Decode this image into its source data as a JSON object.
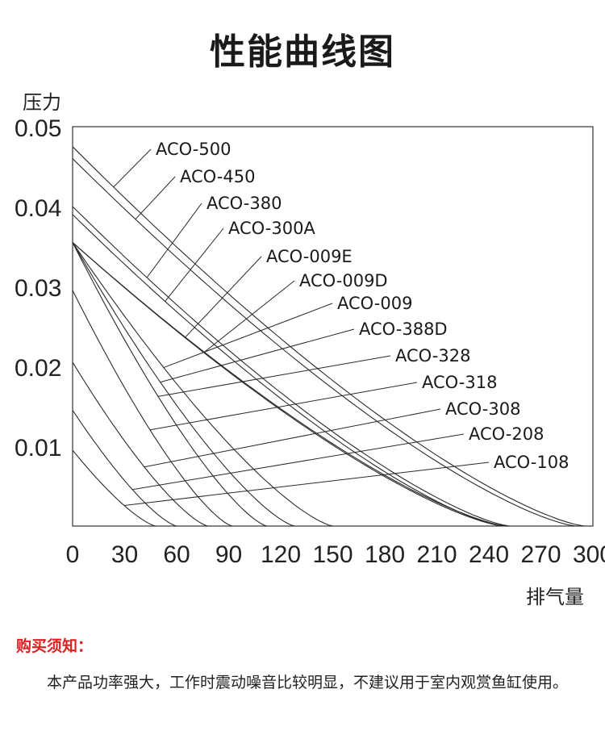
{
  "title": "性能曲线图",
  "chart_data": {
    "type": "line",
    "title": "性能曲线图",
    "ylabel": "压力",
    "xlabel": "排气量",
    "xlim": [
      0,
      300
    ],
    "ylim": [
      0,
      0.05
    ],
    "xticks": [
      0,
      30,
      60,
      90,
      120,
      150,
      180,
      210,
      240,
      270,
      300
    ],
    "yticks": [
      0.01,
      0.02,
      0.03,
      0.04,
      0.05
    ],
    "ytick_labels": [
      "0.01",
      "0.02",
      "0.03",
      "0.04",
      "0.05"
    ],
    "series": [
      {
        "name": "ACO-500",
        "y0": 0.0475,
        "x_max": 295
      },
      {
        "name": "ACO-450",
        "y0": 0.046,
        "x_max": 290
      },
      {
        "name": "ACO-380",
        "y0": 0.04,
        "x_max": 252
      },
      {
        "name": "ACO-300A",
        "y0": 0.039,
        "x_max": 248
      },
      {
        "name": "ACO-009E",
        "y0": 0.0355,
        "x_max": 250
      },
      {
        "name": "ACO-009D",
        "y0": 0.0355,
        "x_max": 248
      },
      {
        "name": "ACO-009",
        "y0": 0.0355,
        "x_max": 150
      },
      {
        "name": "ACO-388D",
        "y0": 0.0355,
        "x_max": 128
      },
      {
        "name": "ACO-328",
        "y0": 0.0355,
        "x_max": 112
      },
      {
        "name": "ACO-318",
        "y0": 0.0295,
        "x_max": 92
      },
      {
        "name": "ACO-308",
        "y0": 0.0205,
        "x_max": 78
      },
      {
        "name": "ACO-208",
        "y0": 0.0145,
        "x_max": 60
      },
      {
        "name": "ACO-108",
        "y0": 0.0095,
        "x_max": 48
      }
    ]
  },
  "notice": {
    "heading": "购买须知：",
    "body": "本产品功率强大，工作时震动噪音比较明显，不建议用于室内观赏鱼缸使用。"
  }
}
